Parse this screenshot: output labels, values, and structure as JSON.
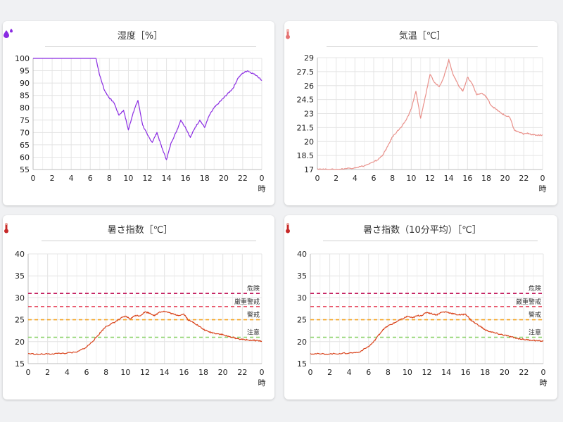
{
  "colors": {
    "humidity": "#8a2be2",
    "temperature": "#e9908a",
    "wbgt": "#d9421a",
    "danger": "#c2185b",
    "severe_warning": "#e53950",
    "warning": "#f5a623",
    "caution": "#8cd46c"
  },
  "chart_data": [
    {
      "type": "line",
      "title": "湿度［%］",
      "icon": "droplets-icon",
      "xlabel": "時",
      "ylabel": "",
      "x_ticks": [
        "0",
        "2",
        "4",
        "6",
        "8",
        "10",
        "12",
        "14",
        "16",
        "18",
        "20",
        "22",
        "0"
      ],
      "y_ticks": [
        "100",
        "95",
        "90",
        "85",
        "80",
        "75",
        "70",
        "65",
        "60",
        "55"
      ],
      "xlim": [
        0,
        24
      ],
      "ylim": [
        55,
        100
      ],
      "grid": true,
      "series": [
        {
          "color": "#8a2be2",
          "x": [
            0,
            1,
            2,
            3,
            4,
            5,
            6,
            6.6,
            7,
            7.5,
            8,
            8.5,
            9,
            9.5,
            10,
            10.5,
            11,
            11.5,
            12,
            12.5,
            13,
            13.5,
            14,
            14.5,
            15,
            15.5,
            16,
            16.5,
            17,
            17.5,
            18,
            18.5,
            19,
            19.5,
            20,
            20.5,
            21,
            21.5,
            22,
            22.5,
            23,
            23.5,
            24
          ],
          "y": [
            100,
            100,
            100,
            100,
            100,
            100,
            100,
            100,
            93,
            87,
            84,
            82,
            77,
            79,
            71,
            78,
            83,
            73,
            69,
            66,
            70,
            64,
            59,
            66,
            70,
            75,
            72,
            68,
            72,
            75,
            72,
            77,
            80,
            82,
            84,
            86,
            88,
            92,
            94,
            95,
            94,
            93,
            91
          ]
        }
      ]
    },
    {
      "type": "line",
      "title": "気温［℃］",
      "icon": "thermometer-icon",
      "xlabel": "時",
      "ylabel": "",
      "x_ticks": [
        "0",
        "2",
        "4",
        "6",
        "8",
        "10",
        "12",
        "14",
        "16",
        "18",
        "20",
        "22",
        "0"
      ],
      "y_ticks": [
        "29",
        "27.5",
        "26",
        "24.5",
        "23",
        "21.5",
        "20",
        "18.5",
        "17"
      ],
      "xlim": [
        0,
        24
      ],
      "ylim": [
        17,
        29
      ],
      "grid": true,
      "series": [
        {
          "color": "#e9908a",
          "x": [
            0,
            1,
            2,
            3,
            4,
            5,
            6,
            6.5,
            7,
            7.5,
            8,
            8.5,
            9,
            9.5,
            10,
            10.5,
            11,
            11.5,
            12,
            12.5,
            13,
            13.5,
            14,
            14.5,
            15,
            15.5,
            16,
            16.5,
            17,
            17.5,
            18,
            18.5,
            19,
            19.5,
            20,
            20.5,
            21,
            21.5,
            22,
            22.5,
            23,
            23.5,
            24
          ],
          "y": [
            17.1,
            17.0,
            17.0,
            17.1,
            17.2,
            17.4,
            17.8,
            18.1,
            18.6,
            19.5,
            20.5,
            21.1,
            21.6,
            22.4,
            23.5,
            25.4,
            22.5,
            24.8,
            27.2,
            26.3,
            25.9,
            27.0,
            28.8,
            27.1,
            26.1,
            25.4,
            26.9,
            26.2,
            25.0,
            25.2,
            24.8,
            23.9,
            23.5,
            23.1,
            22.8,
            22.6,
            21.2,
            21.0,
            20.8,
            20.9,
            20.7,
            20.7,
            20.7
          ]
        }
      ]
    },
    {
      "type": "line",
      "title": "暑さ指数［℃］",
      "icon": "thermometer-icon",
      "xlabel": "時",
      "ylabel": "",
      "x_ticks": [
        "0",
        "2",
        "4",
        "6",
        "8",
        "10",
        "12",
        "14",
        "16",
        "18",
        "20",
        "22",
        "0"
      ],
      "y_ticks": [
        "40",
        "35",
        "30",
        "25",
        "20",
        "15"
      ],
      "xlim": [
        0,
        24
      ],
      "ylim": [
        15,
        40
      ],
      "grid": true,
      "thresholds": [
        {
          "label": "危険",
          "value": 31,
          "color": "#c2185b"
        },
        {
          "label": "厳重警戒",
          "value": 28,
          "color": "#e53950"
        },
        {
          "label": "警戒",
          "value": 25,
          "color": "#f5a623"
        },
        {
          "label": "注意",
          "value": 21,
          "color": "#8cd46c"
        }
      ],
      "series": [
        {
          "color": "#d9421a",
          "x": [
            0,
            1,
            2,
            3,
            4,
            5,
            6,
            6.5,
            7,
            7.5,
            8,
            8.5,
            9,
            9.5,
            10,
            10.5,
            11,
            11.5,
            12,
            12.5,
            13,
            13.5,
            14,
            14.5,
            15,
            15.5,
            16,
            16.5,
            17,
            17.5,
            18,
            18.5,
            19,
            19.5,
            20,
            20.5,
            21,
            21.5,
            22,
            22.5,
            23,
            23.5,
            24
          ],
          "y": [
            17.3,
            17.1,
            17.2,
            17.3,
            17.4,
            17.6,
            18.8,
            19.8,
            21.0,
            22.3,
            23.5,
            24.0,
            24.6,
            25.3,
            25.8,
            25.2,
            26.0,
            25.9,
            26.8,
            26.5,
            25.9,
            26.8,
            26.9,
            26.6,
            26.2,
            26.0,
            26.3,
            24.8,
            24.4,
            23.6,
            22.8,
            22.3,
            22.0,
            21.8,
            21.6,
            21.2,
            21.0,
            20.7,
            20.5,
            20.4,
            20.3,
            20.3,
            20.1
          ]
        }
      ]
    },
    {
      "type": "line",
      "title": "暑さ指数（10分平均）［℃］",
      "icon": "thermometer-icon",
      "xlabel": "時",
      "ylabel": "",
      "x_ticks": [
        "0",
        "2",
        "4",
        "6",
        "8",
        "10",
        "12",
        "14",
        "16",
        "18",
        "20",
        "22",
        "0"
      ],
      "y_ticks": [
        "40",
        "35",
        "30",
        "25",
        "20",
        "15"
      ],
      "xlim": [
        0,
        24
      ],
      "ylim": [
        15,
        40
      ],
      "grid": true,
      "thresholds": [
        {
          "label": "危険",
          "value": 31,
          "color": "#c2185b"
        },
        {
          "label": "厳重警戒",
          "value": 28,
          "color": "#e53950"
        },
        {
          "label": "警戒",
          "value": 25,
          "color": "#f5a623"
        },
        {
          "label": "注意",
          "value": 21,
          "color": "#8cd46c"
        }
      ],
      "series": [
        {
          "color": "#d9421a",
          "x": [
            0,
            1,
            2,
            3,
            4,
            5,
            6,
            6.5,
            7,
            7.5,
            8,
            8.5,
            9,
            9.5,
            10,
            10.5,
            11,
            11.5,
            12,
            12.5,
            13,
            13.5,
            14,
            14.5,
            15,
            15.5,
            16,
            16.5,
            17,
            17.5,
            18,
            18.5,
            19,
            19.5,
            20,
            20.5,
            21,
            21.5,
            22,
            22.5,
            23,
            23.5,
            24
          ],
          "y": [
            17.3,
            17.2,
            17.2,
            17.3,
            17.4,
            17.6,
            18.9,
            19.9,
            21.4,
            22.8,
            23.6,
            24.1,
            24.7,
            25.2,
            25.8,
            25.4,
            25.9,
            26.0,
            26.7,
            26.4,
            26.1,
            26.7,
            26.8,
            26.5,
            26.2,
            26.1,
            26.3,
            25.0,
            24.2,
            23.5,
            22.7,
            22.3,
            22.0,
            21.7,
            21.5,
            21.2,
            20.9,
            20.7,
            20.5,
            20.4,
            20.3,
            20.2,
            20.1
          ]
        }
      ]
    }
  ]
}
